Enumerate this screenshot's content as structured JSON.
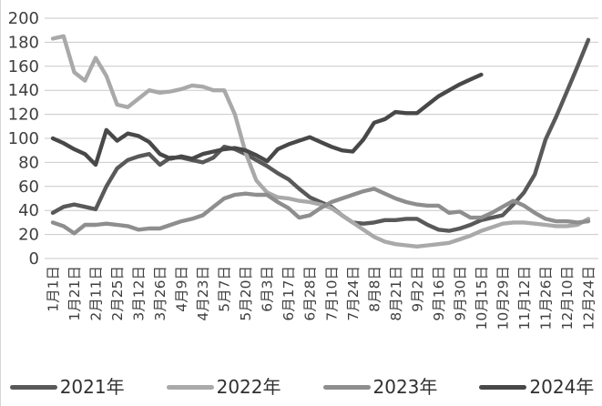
{
  "chart_data": {
    "type": "line",
    "title": "",
    "xlabel": "",
    "ylabel": "",
    "grid": true,
    "legend_position": "bottom",
    "y_axis": {
      "min": 0,
      "max": 200,
      "step": 20,
      "tick_labels": [
        "0",
        "20",
        "40",
        "60",
        "80",
        "100",
        "120",
        "140",
        "160",
        "180",
        "200"
      ]
    },
    "x_labels": [
      "1月1日",
      "1月21日",
      "2月11日",
      "2月25日",
      "3月12日",
      "3月26日",
      "4月9日",
      "4月23日",
      "5月7日",
      "5月20日",
      "6月3日",
      "6月17日",
      "6月28日",
      "7月10日",
      "7月24日",
      "8月8日",
      "8月21日",
      "9月2日",
      "9月16日",
      "9月30日",
      "10月15日",
      "10月29日",
      "11月12日",
      "11月26日",
      "12月10日",
      "12月24日"
    ],
    "points_per_label_interval": 2,
    "series": [
      {
        "name": "2021年",
        "color": "#595959",
        "values": [
          38,
          43,
          45,
          43,
          41,
          60,
          75,
          82,
          85,
          87,
          78,
          84,
          84,
          82,
          80,
          84,
          93,
          91,
          87,
          82,
          77,
          71,
          66,
          58,
          51,
          47,
          43,
          36,
          30,
          29,
          30,
          32,
          32,
          33,
          33,
          28,
          24,
          23,
          25,
          28,
          32,
          34,
          36,
          45,
          55,
          70,
          99,
          118,
          139,
          160,
          182
        ]
      },
      {
        "name": "2022年",
        "color": "#a9a9a9",
        "values": [
          183,
          185,
          155,
          148,
          167,
          152,
          128,
          126,
          133,
          140,
          138,
          139,
          141,
          144,
          143,
          140,
          140,
          120,
          88,
          65,
          55,
          51,
          50,
          48,
          47,
          45,
          42,
          36,
          30,
          24,
          18,
          14,
          12,
          11,
          10,
          11,
          12,
          13,
          16,
          19,
          23,
          26,
          29,
          30,
          30,
          29,
          28,
          27,
          27,
          28,
          33
        ]
      },
      {
        "name": "2023年",
        "color": "#8e8e8e",
        "values": [
          30,
          27,
          21,
          28,
          28,
          29,
          28,
          27,
          24,
          25,
          25,
          28,
          31,
          33,
          36,
          43,
          50,
          53,
          54,
          53,
          53,
          47,
          42,
          34,
          36,
          42,
          47,
          50,
          53,
          56,
          58,
          54,
          50,
          47,
          45,
          44,
          44,
          38,
          39,
          34,
          34,
          38,
          43,
          48,
          44,
          38,
          33,
          31,
          31,
          30,
          31
        ]
      },
      {
        "name": "2024年",
        "color": "#484848",
        "values": [
          100,
          96,
          91,
          87,
          78,
          107,
          98,
          104,
          102,
          97,
          87,
          83,
          85,
          83,
          87,
          89,
          91,
          92,
          90,
          86,
          81,
          91,
          95,
          98,
          101,
          97,
          93,
          90,
          89,
          99,
          113,
          116,
          122,
          121,
          121,
          128,
          135,
          140,
          145,
          149,
          153,
          null,
          null,
          null,
          null,
          null,
          null,
          null,
          null,
          null,
          null
        ]
      }
    ],
    "colors": {
      "gridline": "#c9c9c9",
      "axis_text": "#3f3f3f",
      "background": "#ffffff"
    }
  }
}
